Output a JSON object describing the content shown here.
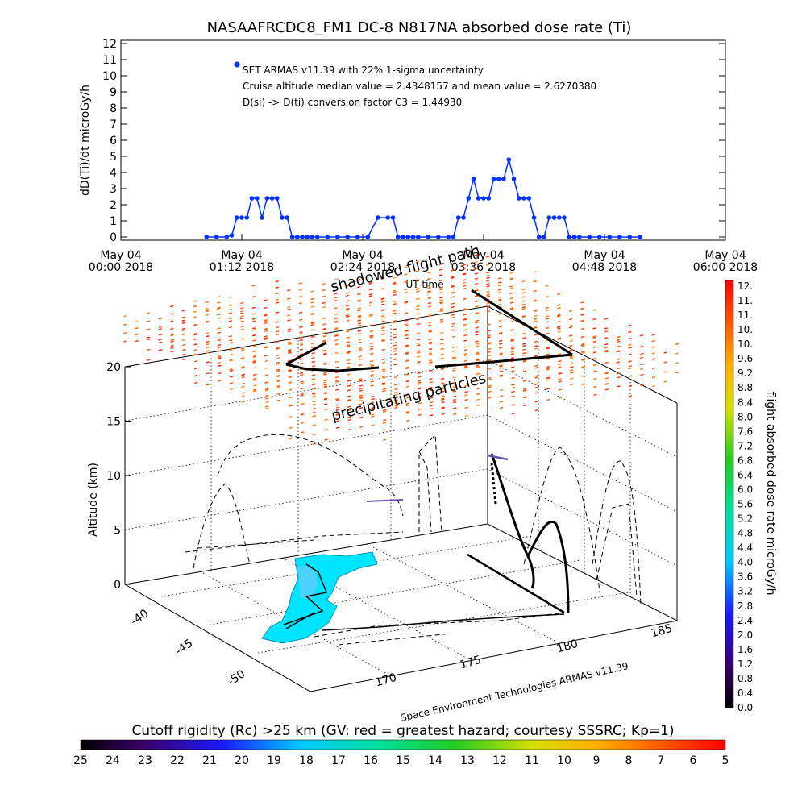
{
  "title": "NASAAFRCDC8_FM1 DC-8    N817NA absorbed dose rate (Ti)",
  "colors": {
    "series": "#0033ff",
    "frame": "#000000",
    "background": "#ffffff",
    "shadow": "#000000"
  },
  "chart_data": [
    {
      "type": "scatter",
      "title": "NASAAFRCDC8_FM1 DC-8    N817NA absorbed dose rate (Ti)",
      "ylabel": "dD(Ti)/dt microGy/h",
      "xlabel": "UT time",
      "ylim": [
        0,
        12
      ],
      "yticks": [
        "0",
        "1",
        "2",
        "3",
        "4",
        "5",
        "6",
        "7",
        "8",
        "9",
        "10",
        "11",
        "12"
      ],
      "xlim": [
        "2018-05-04 00:00",
        "2018-05-04 06:00"
      ],
      "xticks": [
        {
          "line1": "May 04",
          "line2": "00:00 2018",
          "hours": 0
        },
        {
          "line1": "May 04",
          "line2": "01:12 2018",
          "hours": 1.2
        },
        {
          "line1": "May 04",
          "line2": "02:24 2018",
          "hours": 2.4
        },
        {
          "line1": "May 04",
          "line2": "03:36 2018",
          "hours": 3.6
        },
        {
          "line1": "May 04",
          "line2": "04:48 2018",
          "hours": 4.8
        },
        {
          "line1": "May 04",
          "line2": "06:00 2018",
          "hours": 6.0
        }
      ],
      "legend": [
        "SET ARMAS v11.39 with 22% 1-sigma uncertainty",
        "Cruise altitude median value = 2.4348157 and mean value = 2.6270380",
        "D(si) -> D(ti) conversion factor C3 = 1.44930"
      ],
      "legend_placement": "top-left",
      "series": [
        {
          "x_hours": [
            0.85,
            0.95,
            1.05,
            1.1,
            1.15,
            1.2,
            1.25,
            1.3,
            1.35,
            1.4,
            1.45,
            1.5,
            1.55,
            1.6,
            1.65,
            1.7,
            1.75,
            1.8,
            1.85,
            1.9,
            1.95,
            2.05,
            2.15,
            2.25,
            2.35,
            2.45,
            2.55,
            2.65,
            2.7,
            2.75,
            2.8,
            2.85,
            2.9,
            2.95,
            3.05,
            3.15,
            3.25,
            3.3,
            3.35,
            3.4,
            3.45,
            3.5,
            3.55,
            3.6,
            3.65,
            3.7,
            3.75,
            3.8,
            3.85,
            3.9,
            3.95,
            4.0,
            4.05,
            4.1,
            4.15,
            4.2,
            4.25,
            4.3,
            4.35,
            4.4,
            4.45,
            4.5,
            4.55,
            4.65,
            4.75,
            4.85,
            4.95,
            5.05,
            5.15
          ],
          "y": [
            0,
            0,
            0,
            0.1,
            1.2,
            1.2,
            1.2,
            2.4,
            2.4,
            1.2,
            2.4,
            2.4,
            2.4,
            1.2,
            1.2,
            0,
            0,
            0,
            0,
            0,
            0,
            0,
            0,
            0,
            0,
            0,
            1.2,
            1.2,
            1.2,
            0,
            0,
            0,
            0,
            0,
            0,
            0,
            0,
            0,
            1.2,
            1.2,
            2.4,
            3.6,
            2.4,
            2.4,
            2.4,
            3.6,
            3.6,
            3.6,
            4.8,
            3.6,
            2.4,
            2.4,
            2.4,
            1.2,
            0,
            0,
            1.2,
            1.2,
            1.2,
            1.2,
            0,
            0,
            0,
            0,
            0,
            0,
            0,
            0,
            0
          ]
        }
      ]
    },
    {
      "type": "scatter",
      "title": "",
      "zlabel": "Altitude (km)",
      "zticks": [
        "0",
        "5",
        "10",
        "15",
        "20"
      ],
      "zlim": [
        0,
        20
      ],
      "xticks": [
        "170",
        "175",
        "180",
        "185"
      ],
      "yticks": [
        "-40",
        "-45",
        "-50"
      ],
      "annotations": [
        "shadowed flight path",
        "precipitating particles",
        "Space Environment Technologies ARMAS v11.39"
      ],
      "colorbar": {
        "label": "flight absorbed dose rate microGy/h",
        "min": 0,
        "max": 12,
        "ticks": [
          "12.",
          "11.",
          "11.",
          "10.",
          "10.",
          "9.6",
          "9.2",
          "8.8",
          "8.4",
          "8.0",
          "7.6",
          "7.2",
          "6.8",
          "6.4",
          "6.0",
          "5.6",
          "5.2",
          "4.8",
          "4.4",
          "4.0",
          "3.6",
          "3.2",
          "2.8",
          "2.4",
          "2.0",
          "1.6",
          "1.2",
          "0.8",
          "0.4",
          "0.0"
        ]
      }
    },
    {
      "type": "heatmap",
      "title": "",
      "label": "Cutoff rigidity (Rc) >25 km (GV: red = greatest hazard; courtesy SSSRC; Kp=1)",
      "ticks": [
        "25",
        "24",
        "23",
        "22",
        "21",
        "20",
        "19",
        "18",
        "17",
        "16",
        "15",
        "14",
        "13",
        "12",
        "11",
        "10",
        "9",
        "8",
        "7",
        "6",
        "5"
      ]
    }
  ]
}
